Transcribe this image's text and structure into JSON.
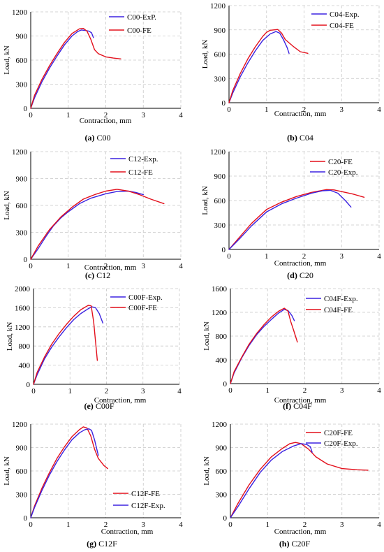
{
  "colors": {
    "exp": "#3b22e0",
    "fe": "#e3101c",
    "grid": "#c8c8c8"
  },
  "chart_data": [
    {
      "type": "line",
      "xlabel": "Contraction, mm",
      "ylabel": "Load, kN",
      "xlim": [
        0,
        4
      ],
      "ylim": [
        0,
        1200
      ],
      "xticks": [
        "0",
        "1",
        "2",
        "3",
        "4"
      ],
      "yticks": [
        "0",
        "300",
        "600",
        "900",
        "1200"
      ],
      "grid": true,
      "legend_position": "top-right",
      "caption_id": "(a)",
      "caption_name": "C00",
      "series": [
        {
          "name": "C00-ExP.",
          "color_key": "exp",
          "x": [
            0,
            0.1,
            0.3,
            0.5,
            0.7,
            0.9,
            1.1,
            1.25,
            1.35,
            1.45,
            1.55,
            1.62,
            1.67
          ],
          "y": [
            0,
            130,
            330,
            500,
            650,
            790,
            900,
            955,
            975,
            970,
            960,
            940,
            880
          ]
        },
        {
          "name": "C00-FE",
          "color_key": "fe",
          "x": [
            0,
            0.1,
            0.3,
            0.5,
            0.7,
            0.9,
            1.1,
            1.3,
            1.4,
            1.5,
            1.6,
            1.7,
            1.8,
            2.0,
            2.2,
            2.4
          ],
          "y": [
            0,
            160,
            360,
            530,
            680,
            820,
            930,
            990,
            995,
            960,
            860,
            730,
            680,
            640,
            625,
            615
          ]
        }
      ]
    },
    {
      "type": "line",
      "xlabel": "Contraction, mm",
      "ylabel": "Load, kN",
      "xlim": [
        0,
        4
      ],
      "ylim": [
        0,
        1200
      ],
      "xticks": [
        "0",
        "1",
        "2",
        "3",
        "4"
      ],
      "yticks": [
        "0",
        "300",
        "600",
        "900",
        "1200"
      ],
      "grid": true,
      "legend_position": "top-right",
      "caption_id": "(b)",
      "caption_name": "C04",
      "series": [
        {
          "name": "C04-Exp.",
          "color_key": "exp",
          "x": [
            0,
            0.1,
            0.3,
            0.5,
            0.7,
            0.9,
            1.1,
            1.25,
            1.35,
            1.45,
            1.55,
            1.6
          ],
          "y": [
            0,
            120,
            320,
            490,
            640,
            770,
            850,
            880,
            860,
            780,
            680,
            610
          ]
        },
        {
          "name": "C04-FE",
          "color_key": "fe",
          "x": [
            0,
            0.1,
            0.3,
            0.5,
            0.7,
            0.9,
            1.0,
            1.1,
            1.3,
            1.4,
            1.5,
            1.7,
            1.9,
            2.1
          ],
          "y": [
            0,
            150,
            360,
            540,
            690,
            820,
            870,
            895,
            905,
            860,
            780,
            700,
            630,
            610
          ]
        }
      ]
    },
    {
      "type": "line",
      "xlabel": "Contraction, mm",
      "ylabel": "Load, kN",
      "xlim": [
        0,
        4
      ],
      "ylim": [
        0,
        1200
      ],
      "xticks": [
        "0",
        "1",
        "2",
        "3",
        "4"
      ],
      "yticks": [
        "0",
        "300",
        "600",
        "900",
        "1200"
      ],
      "grid": true,
      "legend_position": "top-right",
      "caption_id": "(c)",
      "caption_name": "C12",
      "series": [
        {
          "name": "C12-Exp.",
          "color_key": "exp",
          "x": [
            0,
            0.2,
            0.4,
            0.6,
            0.8,
            1.0,
            1.3,
            1.6,
            2.0,
            2.3,
            2.6,
            2.8,
            3.0
          ],
          "y": [
            0,
            120,
            250,
            370,
            460,
            530,
            620,
            680,
            730,
            755,
            760,
            745,
            720
          ]
        },
        {
          "name": "C12-FE",
          "color_key": "fe",
          "x": [
            0,
            0.2,
            0.5,
            0.8,
            1.1,
            1.4,
            1.7,
            2.0,
            2.3,
            2.6,
            2.9,
            3.2,
            3.55
          ],
          "y": [
            0,
            150,
            330,
            470,
            580,
            670,
            720,
            760,
            780,
            760,
            720,
            670,
            620
          ]
        }
      ]
    },
    {
      "type": "line",
      "xlabel": "Contraction, mm",
      "ylabel": "Load, kN",
      "xlim": [
        0,
        4
      ],
      "ylim": [
        0,
        1200
      ],
      "xticks": [
        "0",
        "1",
        "2",
        "3",
        "4"
      ],
      "yticks": [
        "0",
        "300",
        "600",
        "900",
        "1200"
      ],
      "grid": true,
      "legend_position": "top-right",
      "caption_id": "(d)",
      "caption_name": "C20",
      "series": [
        {
          "name": "C20-FE",
          "color_key": "fe",
          "x": [
            0,
            0.3,
            0.6,
            1.0,
            1.4,
            1.8,
            2.2,
            2.6,
            2.8,
            3.0,
            3.3,
            3.6
          ],
          "y": [
            0,
            160,
            320,
            490,
            580,
            650,
            700,
            735,
            730,
            710,
            680,
            640
          ]
        },
        {
          "name": "C20-Exp.",
          "color_key": "exp",
          "x": [
            0,
            0.3,
            0.6,
            1.0,
            1.4,
            1.8,
            2.2,
            2.5,
            2.7,
            2.9,
            3.1,
            3.25
          ],
          "y": [
            0,
            140,
            290,
            460,
            560,
            630,
            690,
            720,
            725,
            690,
            600,
            520
          ]
        }
      ]
    },
    {
      "type": "line",
      "xlabel": "Contraction, mm",
      "ylabel": "Load, kN",
      "xlim": [
        0,
        4
      ],
      "ylim": [
        0,
        2000
      ],
      "xticks": [
        "0",
        "1",
        "2",
        "3",
        "4"
      ],
      "yticks": [
        "0",
        "400",
        "800",
        "1200",
        "1600",
        "2000"
      ],
      "grid": true,
      "legend_position": "top-right",
      "caption_id": "(e)",
      "caption_name": "C00F",
      "series": [
        {
          "name": "C00F-Exp.",
          "color_key": "exp",
          "x": [
            0,
            0.1,
            0.3,
            0.5,
            0.7,
            0.9,
            1.1,
            1.3,
            1.5,
            1.6,
            1.7,
            1.8,
            1.9
          ],
          "y": [
            0,
            200,
            530,
            780,
            990,
            1180,
            1350,
            1480,
            1580,
            1620,
            1600,
            1480,
            1280
          ]
        },
        {
          "name": "C00F-FE",
          "color_key": "fe",
          "x": [
            0,
            0.1,
            0.3,
            0.5,
            0.7,
            0.9,
            1.1,
            1.3,
            1.5,
            1.58,
            1.65,
            1.7,
            1.75
          ],
          "y": [
            0,
            250,
            570,
            840,
            1060,
            1250,
            1420,
            1560,
            1650,
            1640,
            1300,
            900,
            500
          ]
        }
      ]
    },
    {
      "type": "line",
      "xlabel": "Contraction, mm",
      "ylabel": "Load, kN",
      "xlim": [
        0,
        4
      ],
      "ylim": [
        0,
        1600
      ],
      "xticks": [
        "0",
        "1",
        "2",
        "3",
        "4"
      ],
      "yticks": [
        "0",
        "400",
        "800",
        "1200",
        "1600"
      ],
      "grid": true,
      "legend_position": "top-right",
      "caption_id": "(f)",
      "caption_name": "C04F",
      "series": [
        {
          "name": "C04F-Exp.",
          "color_key": "exp",
          "x": [
            0,
            0.1,
            0.3,
            0.5,
            0.7,
            0.9,
            1.1,
            1.3,
            1.45,
            1.55,
            1.65,
            1.72
          ],
          "y": [
            0,
            180,
            430,
            640,
            820,
            960,
            1080,
            1190,
            1250,
            1230,
            1150,
            1060
          ]
        },
        {
          "name": "C04F-FE",
          "color_key": "fe",
          "x": [
            0,
            0.1,
            0.3,
            0.5,
            0.7,
            0.9,
            1.1,
            1.3,
            1.45,
            1.55,
            1.62,
            1.7,
            1.8
          ],
          "y": [
            0,
            200,
            440,
            660,
            840,
            990,
            1120,
            1220,
            1270,
            1220,
            1050,
            900,
            700
          ]
        }
      ]
    },
    {
      "type": "line",
      "xlabel": "Contraction, mm",
      "ylabel": "Load, kN",
      "xlim": [
        0,
        4
      ],
      "ylim": [
        0,
        1200
      ],
      "xticks": [
        "0",
        "1",
        "2",
        "3",
        "4"
      ],
      "yticks": [
        "0",
        "300",
        "600",
        "900",
        "1200"
      ],
      "grid": true,
      "legend_position": "bottom-right",
      "caption_id": "(g)",
      "caption_name": "C12F",
      "series": [
        {
          "name": "C12F-FE",
          "color_key": "fe",
          "x": [
            0,
            0.1,
            0.3,
            0.5,
            0.7,
            0.9,
            1.1,
            1.3,
            1.4,
            1.5,
            1.6,
            1.7,
            1.8,
            1.95,
            2.05
          ],
          "y": [
            0,
            150,
            380,
            580,
            760,
            910,
            1040,
            1130,
            1165,
            1150,
            1050,
            880,
            760,
            670,
            630
          ]
        },
        {
          "name": "C12F-Exp.",
          "color_key": "exp",
          "x": [
            0,
            0.1,
            0.3,
            0.5,
            0.7,
            0.9,
            1.1,
            1.3,
            1.45,
            1.55,
            1.62,
            1.7,
            1.8
          ],
          "y": [
            0,
            130,
            350,
            550,
            720,
            870,
            1000,
            1090,
            1130,
            1140,
            1120,
            1000,
            800
          ]
        }
      ]
    },
    {
      "type": "line",
      "xlabel": "Contraction, mm",
      "ylabel": "Load, kN",
      "xlim": [
        0,
        4
      ],
      "ylim": [
        0,
        1200
      ],
      "xticks": [
        "0",
        "1",
        "2",
        "3",
        "4"
      ],
      "yticks": [
        "0",
        "300",
        "600",
        "900",
        "1200"
      ],
      "grid": true,
      "legend_position": "top-right",
      "caption_id": "(h)",
      "caption_name": "C20F",
      "series": [
        {
          "name": "C20F-FE",
          "color_key": "fe",
          "x": [
            0,
            0.2,
            0.5,
            0.8,
            1.1,
            1.4,
            1.6,
            1.75,
            1.9,
            2.1,
            2.3,
            2.6,
            3.0,
            3.4,
            3.7
          ],
          "y": [
            0,
            180,
            420,
            620,
            780,
            890,
            950,
            965,
            950,
            880,
            780,
            690,
            630,
            615,
            610
          ]
        },
        {
          "name": "C20F-Exp.",
          "color_key": "exp",
          "x": [
            0,
            0.2,
            0.5,
            0.8,
            1.1,
            1.4,
            1.7,
            1.9,
            2.05,
            2.15,
            2.2
          ],
          "y": [
            0,
            140,
            370,
            580,
            740,
            850,
            920,
            950,
            940,
            910,
            840
          ]
        }
      ]
    }
  ]
}
